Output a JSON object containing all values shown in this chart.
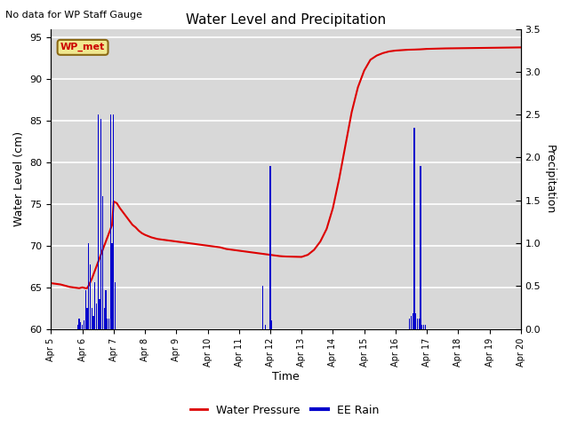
{
  "title": "Water Level and Precipitation",
  "top_left_text": "No data for WP Staff Gauge",
  "ylabel_left": "Water Level (cm)",
  "ylabel_right": "Precipitation",
  "xlabel": "Time",
  "xlim_days": [
    5,
    20
  ],
  "ylim_left": [
    60,
    96
  ],
  "ylim_right": [
    0,
    3.5
  ],
  "yticks_left": [
    60,
    65,
    70,
    75,
    80,
    85,
    90,
    95
  ],
  "yticks_right": [
    0.0,
    0.5,
    1.0,
    1.5,
    2.0,
    2.5,
    3.0,
    3.5
  ],
  "xtick_labels": [
    "Apr 5",
    "Apr 6",
    "Apr 7",
    "Apr 8",
    "Apr 9",
    "Apr 10",
    "Apr 11",
    "Apr 12",
    "Apr 13",
    "Apr 14",
    "Apr 15",
    "Apr 16",
    "Apr 17",
    "Apr 18",
    "Apr 19",
    "Apr 20"
  ],
  "xtick_positions": [
    5,
    6,
    7,
    8,
    9,
    10,
    11,
    12,
    13,
    14,
    15,
    16,
    17,
    18,
    19,
    20
  ],
  "figure_bg_color": "#ffffff",
  "plot_bg_color": "#d8d8d8",
  "grid_color": "#ffffff",
  "wp_label": "WP_met",
  "wp_box_facecolor": "#f0e890",
  "wp_box_edgecolor": "#8B6914",
  "wp_text_color": "#cc0000",
  "water_pressure_color": "#dd0000",
  "rain_color": "#0000cc",
  "legend_wp": "Water Pressure",
  "legend_rain": "EE Rain",
  "water_pressure_x": [
    5.0,
    5.1,
    5.2,
    5.3,
    5.4,
    5.5,
    5.6,
    5.7,
    5.8,
    5.9,
    6.0,
    6.05,
    6.1,
    6.15,
    6.2,
    6.25,
    6.3,
    6.35,
    6.4,
    6.45,
    6.5,
    6.55,
    6.6,
    6.65,
    6.7,
    6.75,
    6.8,
    6.85,
    6.9,
    6.95,
    7.0,
    7.05,
    7.1,
    7.2,
    7.3,
    7.4,
    7.5,
    7.6,
    7.7,
    7.8,
    7.9,
    8.0,
    8.2,
    8.4,
    8.6,
    8.8,
    9.0,
    9.2,
    9.4,
    9.6,
    9.8,
    10.0,
    10.2,
    10.4,
    10.6,
    10.8,
    11.0,
    11.2,
    11.4,
    11.6,
    11.8,
    12.0,
    12.1,
    12.2,
    12.3,
    12.4,
    12.5,
    12.6,
    12.7,
    12.8,
    12.9,
    13.0,
    13.2,
    13.4,
    13.6,
    13.8,
    14.0,
    14.2,
    14.4,
    14.6,
    14.8,
    15.0,
    15.2,
    15.4,
    15.6,
    15.8,
    16.0,
    16.2,
    16.4,
    16.6,
    16.8,
    17.0,
    17.2,
    17.4,
    17.6,
    17.8,
    18.0,
    18.2,
    18.4,
    18.6,
    18.8,
    19.0,
    19.2,
    19.4,
    19.6,
    19.8,
    20.0
  ],
  "water_pressure_y": [
    65.5,
    65.45,
    65.4,
    65.35,
    65.25,
    65.15,
    65.05,
    65.0,
    64.95,
    64.9,
    65.0,
    64.95,
    64.9,
    64.9,
    65.2,
    65.6,
    66.0,
    66.5,
    67.0,
    67.5,
    68.0,
    68.5,
    69.0,
    69.5,
    70.0,
    70.5,
    71.0,
    71.5,
    72.0,
    72.5,
    75.3,
    75.2,
    75.1,
    74.5,
    74.0,
    73.5,
    73.0,
    72.5,
    72.2,
    71.8,
    71.5,
    71.3,
    71.0,
    70.8,
    70.7,
    70.6,
    70.5,
    70.4,
    70.3,
    70.2,
    70.1,
    70.0,
    69.9,
    69.8,
    69.6,
    69.5,
    69.4,
    69.3,
    69.2,
    69.1,
    69.0,
    68.9,
    68.85,
    68.8,
    68.75,
    68.72,
    68.7,
    68.69,
    68.68,
    68.67,
    68.66,
    68.65,
    68.9,
    69.5,
    70.5,
    72.0,
    74.5,
    78.0,
    82.0,
    86.0,
    89.0,
    91.0,
    92.3,
    92.8,
    93.1,
    93.3,
    93.4,
    93.45,
    93.5,
    93.52,
    93.55,
    93.6,
    93.62,
    93.64,
    93.66,
    93.67,
    93.68,
    93.69,
    93.7,
    93.71,
    93.72,
    93.73,
    93.74,
    93.75,
    93.76,
    93.77,
    93.78
  ],
  "rain_bars": [
    [
      5.85,
      0.05
    ],
    [
      5.9,
      0.12
    ],
    [
      5.95,
      0.08
    ],
    [
      6.0,
      0.05
    ],
    [
      6.05,
      0.1
    ],
    [
      6.1,
      0.45
    ],
    [
      6.15,
      0.25
    ],
    [
      6.2,
      1.0
    ],
    [
      6.25,
      0.75
    ],
    [
      6.3,
      0.25
    ],
    [
      6.35,
      0.15
    ],
    [
      6.4,
      0.55
    ],
    [
      6.45,
      0.3
    ],
    [
      6.5,
      2.5
    ],
    [
      6.55,
      0.35
    ],
    [
      6.6,
      2.45
    ],
    [
      6.65,
      1.55
    ],
    [
      6.7,
      0.25
    ],
    [
      6.75,
      0.45
    ],
    [
      6.8,
      0.12
    ],
    [
      6.85,
      0.12
    ],
    [
      6.9,
      2.5
    ],
    [
      6.95,
      1.0
    ],
    [
      7.0,
      2.5
    ],
    [
      7.05,
      0.55
    ],
    [
      11.75,
      0.5
    ],
    [
      11.85,
      0.05
    ],
    [
      12.0,
      1.9
    ],
    [
      12.05,
      0.1
    ],
    [
      16.45,
      0.12
    ],
    [
      16.5,
      0.15
    ],
    [
      16.55,
      0.18
    ],
    [
      16.6,
      2.35
    ],
    [
      16.65,
      0.18
    ],
    [
      16.7,
      0.12
    ],
    [
      16.75,
      0.12
    ],
    [
      16.8,
      1.9
    ],
    [
      16.85,
      0.05
    ],
    [
      16.9,
      0.05
    ],
    [
      16.95,
      0.05
    ]
  ]
}
